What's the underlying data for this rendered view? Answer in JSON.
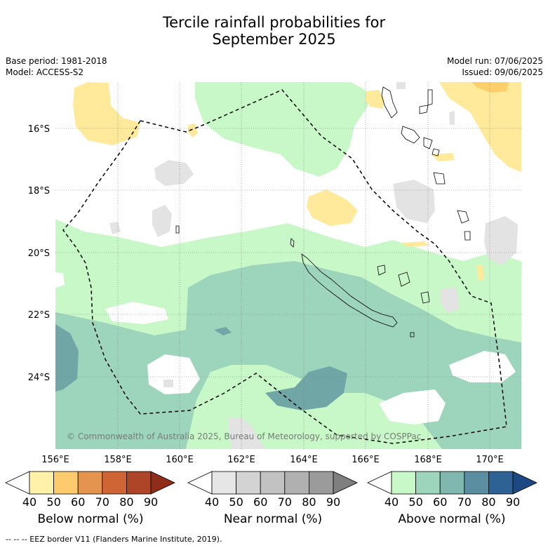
{
  "title_line1": "Tercile rainfall probabilities for",
  "title_line2": "September 2025",
  "base_period": "Base period: 1981-2018",
  "model": "Model: ACCESS-S2",
  "model_run": "Model run: 07/06/2025",
  "issued": "Issued: 09/06/2025",
  "credit": "© Commonwealth of Australia 2025, Bureau of Meteorology, supported by COSPPac",
  "lat_labels": [
    "16°S",
    "18°S",
    "20°S",
    "22°S",
    "24°S"
  ],
  "lon_labels": [
    "156°E",
    "158°E",
    "160°E",
    "162°E",
    "164°E",
    "166°E",
    "168°E",
    "170°E"
  ],
  "colorbars": [
    {
      "label": "Below normal (%)",
      "ticks": [
        "40",
        "50",
        "60",
        "70",
        "80",
        "90"
      ],
      "colors": [
        "#ffffff",
        "#fff1a8",
        "#fdcb6e",
        "#e4944f",
        "#cf6434",
        "#ae4528",
        "#8f2d1a"
      ]
    },
    {
      "label": "Near normal (%)",
      "ticks": [
        "40",
        "50",
        "60",
        "70",
        "80",
        "90"
      ],
      "colors": [
        "#ffffff",
        "#e6e6e6",
        "#d3d3d3",
        "#c2c2c2",
        "#b0b0b0",
        "#9b9b9b",
        "#7f7f7f"
      ]
    },
    {
      "label": "Above normal (%)",
      "ticks": [
        "40",
        "50",
        "60",
        "70",
        "80",
        "90"
      ],
      "colors": [
        "#ffffff",
        "#c8f8c8",
        "#9dd4bc",
        "#80b7ae",
        "#5a8ea0",
        "#2e6194",
        "#1c4883"
      ]
    }
  ],
  "eez_note": "--  --  -- EEZ border V11 (Flanders Marine Institute, 2019).",
  "map_colors": {
    "below_50": "#ffe99a",
    "below_60": "#fdcf6a",
    "near_50": "#e3e3e3",
    "above_50": "#c8f8c8",
    "above_60": "#9dd4bc",
    "above_70": "#70a7a6"
  }
}
